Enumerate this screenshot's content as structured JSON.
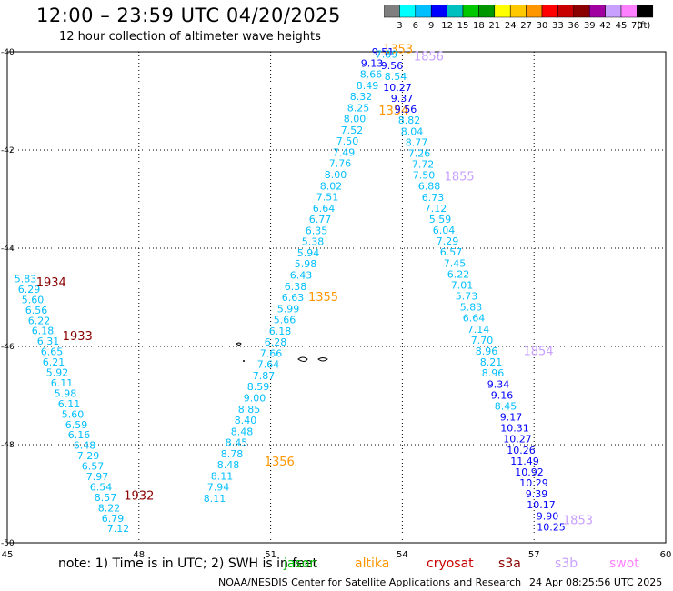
{
  "title": "12:00 – 23:59 UTC 04/20/2025",
  "subtitle": "12 hour collection of altimeter wave heights",
  "colorbar": {
    "colors": [
      "#7f7f7f",
      "#00ffff",
      "#00bfff",
      "#0000ff",
      "#00bfbf",
      "#00c800",
      "#009600",
      "#ffff00",
      "#ffc800",
      "#ff9600",
      "#ff0000",
      "#c80000",
      "#8b0000",
      "#a000a0",
      "#c8a0ff",
      "#ff80ff",
      "#000000"
    ],
    "ticks": [
      "3",
      "6",
      "9",
      "12",
      "15",
      "18",
      "21",
      "24",
      "27",
      "30",
      "33",
      "36",
      "39",
      "42",
      "45",
      "70"
    ],
    "unit": "(ft)"
  },
  "axes": {
    "x_ticks": [
      "45",
      "48",
      "51",
      "54",
      "57",
      "60"
    ],
    "y_ticks": [
      "-40",
      "-42",
      "-44",
      "-46",
      "-48",
      "-50"
    ]
  },
  "color_classes": {
    "a": "#00bfff",
    "b": "#0000ff",
    "jason": "#00bf00",
    "altika": "#ff9600",
    "cryosat": "#c80000",
    "s3a": "#8b0000",
    "s3b": "#c8a0ff",
    "swot": "#ff80ff"
  },
  "tracks": [
    {
      "name": "track-1934",
      "time": {
        "t": "1934",
        "c": "s3a",
        "lon": 46.0,
        "lat": -44.7
      },
      "start": [
        45.4,
        -44.62
      ],
      "step": [
        0.12,
        -0.212
      ],
      "values": [
        "5.83",
        "6.29",
        "5.60",
        "6.56",
        "6.22",
        "6.18",
        "6.31",
        "6.65",
        "6.21",
        "5.92",
        "6.11",
        "5.98",
        "6.11",
        "5.60",
        "6.59",
        "6.16",
        "6.48",
        "7.29",
        "6.57",
        "7.97",
        "6.54",
        "8.57",
        "8.22",
        "6.79",
        "7.12"
      ],
      "colors": [
        "a",
        "a",
        "a",
        "a",
        "a",
        "a",
        "a",
        "a",
        "a",
        "a",
        "a",
        "a",
        "a",
        "a",
        "a",
        "a",
        "a",
        "a",
        "a",
        "a",
        "a",
        "a",
        "a",
        "a",
        "a"
      ]
    },
    {
      "name": "track-1933",
      "time": {
        "t": "1933",
        "c": "s3a",
        "lon": 46.6,
        "lat": -45.8
      }
    },
    {
      "name": "track-1932",
      "time": {
        "t": "1932",
        "c": "s3a",
        "lon": 48.0,
        "lat": -49.05
      }
    },
    {
      "name": "track-1356",
      "time": {
        "t": "1356",
        "c": "altika",
        "lon": 51.2,
        "lat": -48.35
      }
    },
    {
      "name": "track-1355",
      "time": {
        "t": "1355",
        "c": "altika",
        "lon": 52.2,
        "lat": -45.0
      }
    },
    {
      "name": "track-1353",
      "time": {
        "t": "1353",
        "c": "altika",
        "lon": 53.9,
        "lat": -39.95
      }
    },
    {
      "name": "track-1354-alt",
      "time": {
        "t": "1354",
        "c": "altika",
        "lon": 53.8,
        "lat": -41.2
      }
    },
    {
      "name": "track-1856",
      "time": {
        "t": "1856",
        "c": "s3b",
        "lon": 54.6,
        "lat": -40.1
      }
    },
    {
      "name": "track-1855",
      "time": {
        "t": "1855",
        "c": "s3b",
        "lon": 55.3,
        "lat": -42.55
      }
    },
    {
      "name": "track-1854",
      "time": {
        "t": "1854",
        "c": "s3b",
        "lon": 57.1,
        "lat": -46.1
      }
    },
    {
      "name": "track-1853",
      "time": {
        "t": "1853",
        "c": "s3b",
        "lon": 58.0,
        "lat": -49.55
      }
    },
    {
      "name": "track-swot-north",
      "start": [
        53.15,
        -40.0
      ],
      "step": [
        -0.095,
        0.0
      ],
      "values": [
        "9.51",
        "9.13",
        "8.66",
        "8.49",
        "8.32",
        "8.25",
        "8.00",
        "7.52",
        "7.50",
        "7.49",
        "7.76",
        "8.00",
        "8.02",
        "7.51",
        "6.64",
        "6.77",
        "6.35",
        "5.38",
        "5.94",
        "5.98",
        "6.43",
        "6.38",
        "6.63",
        "5.99",
        "5.66",
        "6.18",
        "6.28",
        "7.66",
        "7.64",
        "7.87",
        "8.59",
        "9.00",
        "8.85",
        "8.40",
        "8.48",
        "8.45",
        "8.78",
        "8.48",
        "8.11",
        "7.94",
        "8.11"
      ],
      "colors": [
        "b",
        "b",
        "a",
        "a",
        "a",
        "a",
        "a",
        "a",
        "a",
        "a",
        "a",
        "a",
        "a",
        "a",
        "a",
        "a",
        "a",
        "a",
        "a",
        "a",
        "a",
        "a",
        "a",
        "a",
        "a",
        "a",
        "a",
        "a",
        "a",
        "a",
        "a",
        "a",
        "a",
        "a",
        "a",
        "a",
        "a",
        "a",
        "a",
        "a",
        "a"
      ]
    },
    {
      "name": "track-east",
      "start": [
        53.5,
        -40.05
      ],
      "step": [
        0.095,
        -0.24
      ],
      "values": [
        "7.89",
        "9.56",
        "8.54",
        "10.27",
        "9.37",
        "9.56",
        "8.82",
        "8.04",
        "8.77",
        "7.26",
        "7.72",
        "7.50",
        "6.88",
        "6.73",
        "7.12",
        "5.59",
        "6.04",
        "7.29",
        "6.57",
        "7.45",
        "6.22",
        "7.01",
        "5.73",
        "5.83",
        "6.64",
        "7.14",
        "7.70",
        "8.96",
        "8.21",
        "8.96",
        "9.34",
        "9.16",
        "8.45",
        "9.17",
        "10.31",
        "10.27",
        "10.26",
        "11.49",
        "10.92",
        "10.29",
        "9.39",
        "10.17",
        "9.90",
        "10.25"
      ],
      "colors": [
        "a",
        "b",
        "a",
        "b",
        "b",
        "b",
        "a",
        "a",
        "a",
        "a",
        "a",
        "a",
        "a",
        "a",
        "a",
        "a",
        "a",
        "a",
        "a",
        "a",
        "a",
        "a",
        "a",
        "a",
        "a",
        "a",
        "a",
        "a",
        "a",
        "a",
        "b",
        "b",
        "a",
        "b",
        "b",
        "b",
        "b",
        "b",
        "b",
        "b",
        "b",
        "b",
        "b",
        "b"
      ]
    }
  ],
  "note": "note:  1) Time is in UTC;  2) SWH is in feet",
  "satellites": [
    {
      "label": "jason",
      "c": "jason"
    },
    {
      "label": "altika",
      "c": "altika"
    },
    {
      "label": "cryosat",
      "c": "cryosat"
    },
    {
      "label": "s3a",
      "c": "s3a"
    },
    {
      "label": "s3b",
      "c": "s3b"
    },
    {
      "label": "swot",
      "c": "swot"
    }
  ],
  "credit": "NOAA/NESDIS Center for Satellite Applications and Research",
  "credit_time": "24 Apr 08:25:56 UTC 2025"
}
